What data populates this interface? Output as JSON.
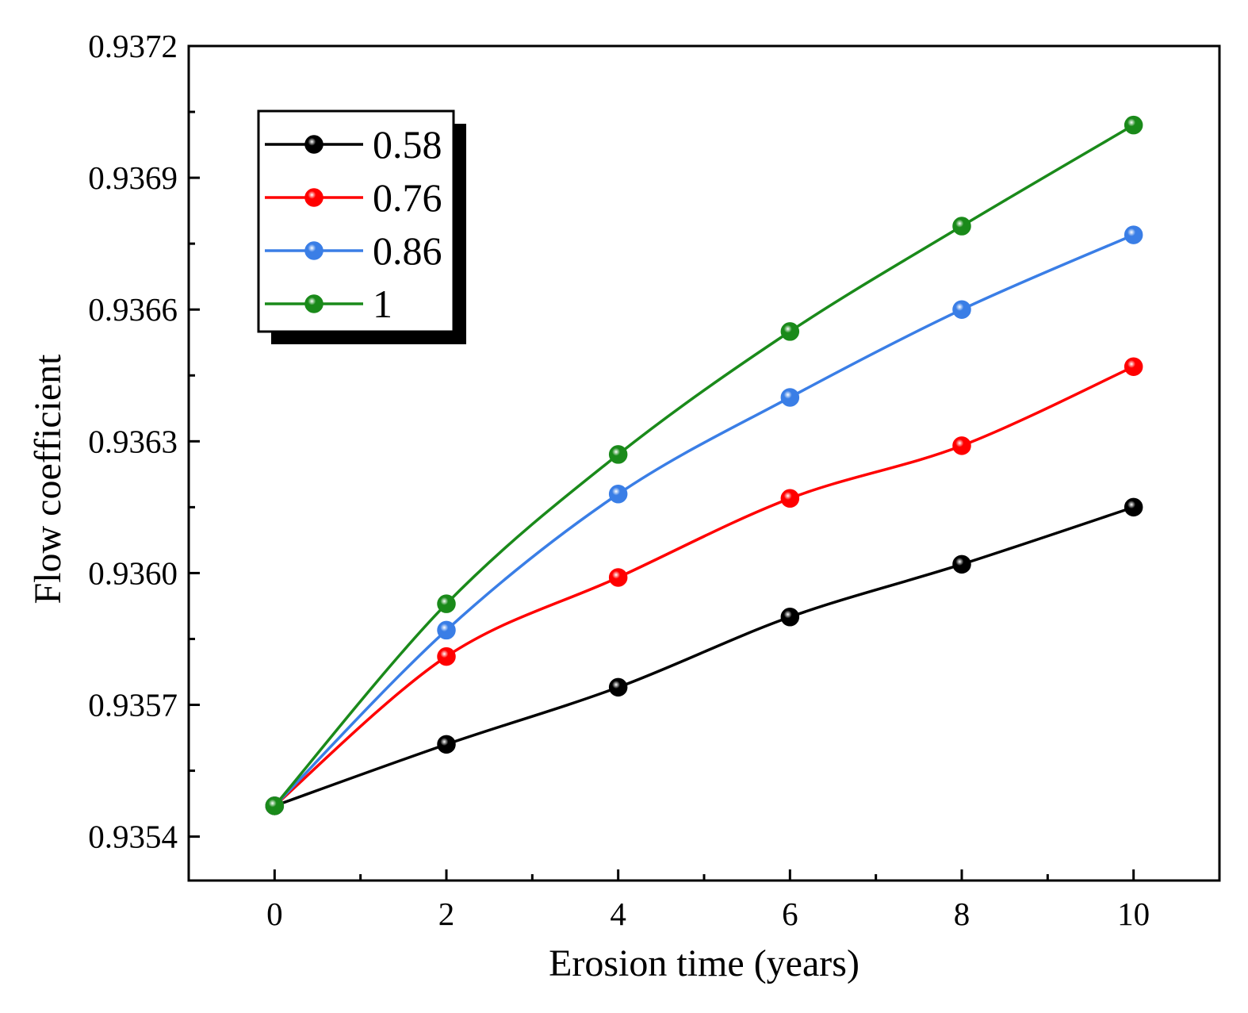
{
  "chart_data": {
    "type": "line",
    "title": "",
    "xlabel": "Erosion time (years)",
    "ylabel": "Flow coefficient",
    "x": [
      0,
      2,
      4,
      6,
      8,
      10
    ],
    "xlim": [
      -1,
      11
    ],
    "ylim": [
      0.9353,
      0.9372
    ],
    "xticks": [
      "0",
      "2",
      "4",
      "6",
      "8",
      "10"
    ],
    "yticks": [
      "0.9354",
      "0.9357",
      "0.9360",
      "0.9363",
      "0.9366",
      "0.9369",
      "0.9372"
    ],
    "grid": false,
    "legend_position": "top-left",
    "series": [
      {
        "name": "0.58",
        "color": "#000000",
        "values": [
          0.93547,
          0.93561,
          0.93574,
          0.9359,
          0.93602,
          0.93615
        ]
      },
      {
        "name": "0.76",
        "color": "#ff0000",
        "values": [
          0.93547,
          0.93581,
          0.93599,
          0.93617,
          0.93629,
          0.93647
        ]
      },
      {
        "name": "0.86",
        "color": "#3a7ee6",
        "values": [
          0.93547,
          0.93587,
          0.93618,
          0.9364,
          0.9366,
          0.93677
        ]
      },
      {
        "name": "1",
        "color": "#1a8a1a",
        "values": [
          0.93547,
          0.93593,
          0.93627,
          0.93655,
          0.93679,
          0.93702
        ]
      }
    ]
  }
}
